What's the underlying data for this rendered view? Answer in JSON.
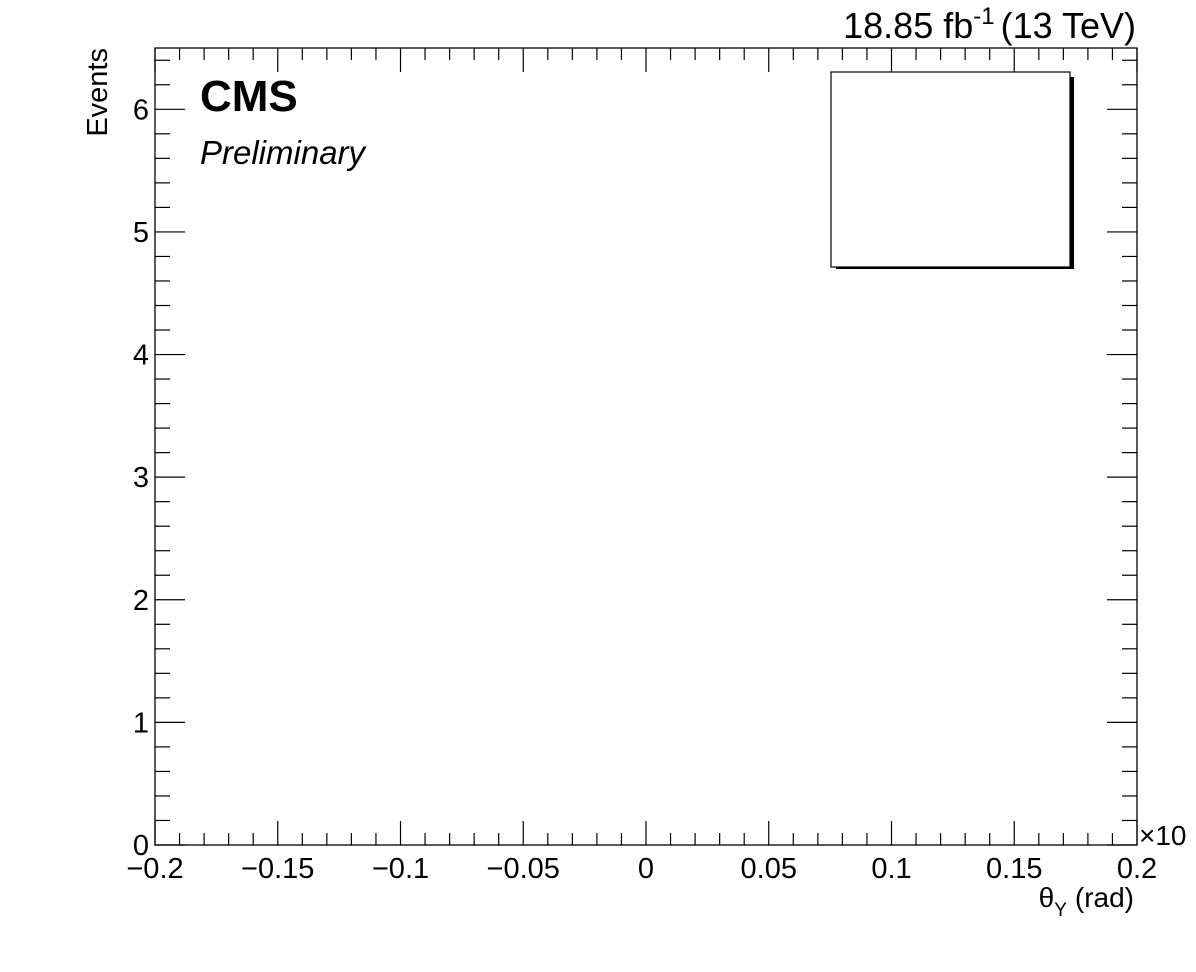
{
  "chart_data": {
    "type": "bar",
    "title": "",
    "experiment": "CMS",
    "status": "Preliminary",
    "lumi": {
      "value": "18.85 fb",
      "exponent": "-1",
      "energy": "(13 TeV)"
    },
    "xlabel": {
      "symbol": "θ",
      "subscript": "Y",
      "unit": "(rad)"
    },
    "ylabel": "Events",
    "x_multiplier": "×10",
    "xlim": [
      -0.2,
      0.2
    ],
    "ylim": [
      0,
      6.5
    ],
    "xticks": [
      -0.2,
      -0.15,
      -0.1,
      -0.05,
      0,
      0.05,
      0.1,
      0.15,
      0.2
    ],
    "xtick_labels": [
      "−0.2",
      "−0.15",
      "−0.1",
      "−0.05",
      "0",
      "0.05",
      "0.1",
      "0.15",
      "0.2"
    ],
    "yticks": [
      0,
      1,
      2,
      3,
      4,
      5,
      6
    ],
    "ytick_labels": [
      "0",
      "1",
      "2",
      "3",
      "4",
      "5",
      "6"
    ],
    "series": [],
    "legend": {
      "placement": "top-right",
      "entries": []
    },
    "grid": false
  }
}
